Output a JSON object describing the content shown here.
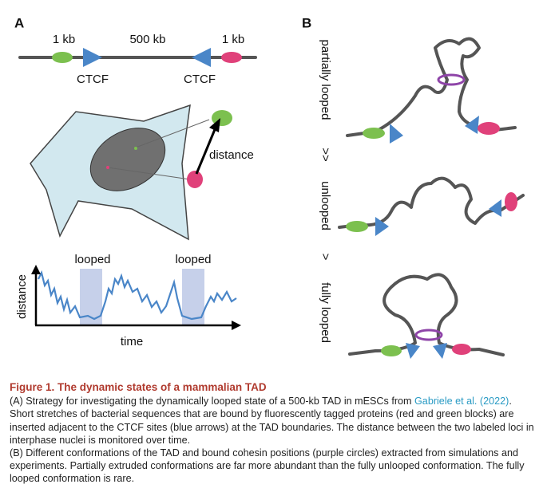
{
  "panel_a": {
    "label": "A",
    "genome_labels": [
      "1 kb",
      "500 kb",
      "1 kb"
    ],
    "ctcf_labels": [
      "CTCF",
      "CTCF"
    ],
    "cell_distance_label": "distance",
    "trace_labels": [
      "looped",
      "looped"
    ],
    "y_axis": "distance",
    "x_axis": "time"
  },
  "panel_b": {
    "label": "B",
    "states": [
      "partially looped",
      "unlooped",
      "fully looped"
    ],
    "comparisons": [
      ">>",
      ">"
    ]
  },
  "caption": {
    "title": "Figure 1. The dynamic states of a mammalian TAD",
    "paragraph_a": {
      "before": "(A) Strategy for investigating the dynamically looped state of a 500-kb TAD in mESCs from ",
      "link": "Gabriele et al. (2022)",
      "after": ". Short stretches of bacterial sequences that are bound by fluorescently tagged proteins (red and green blocks) are inserted adjacent to the CTCF sites (blue arrows) at the TAD boundaries. The distance between the two labeled loci in interphase nuclei is monitored over time."
    },
    "paragraph_b": "(B) Different conformations of the TAD and bound cohesin positions (purple circles) extracted from simulations and experiments. Partially extruded conformations are far more abundant than the fully unlooped conformation. The fully looped conformation is rare."
  }
}
